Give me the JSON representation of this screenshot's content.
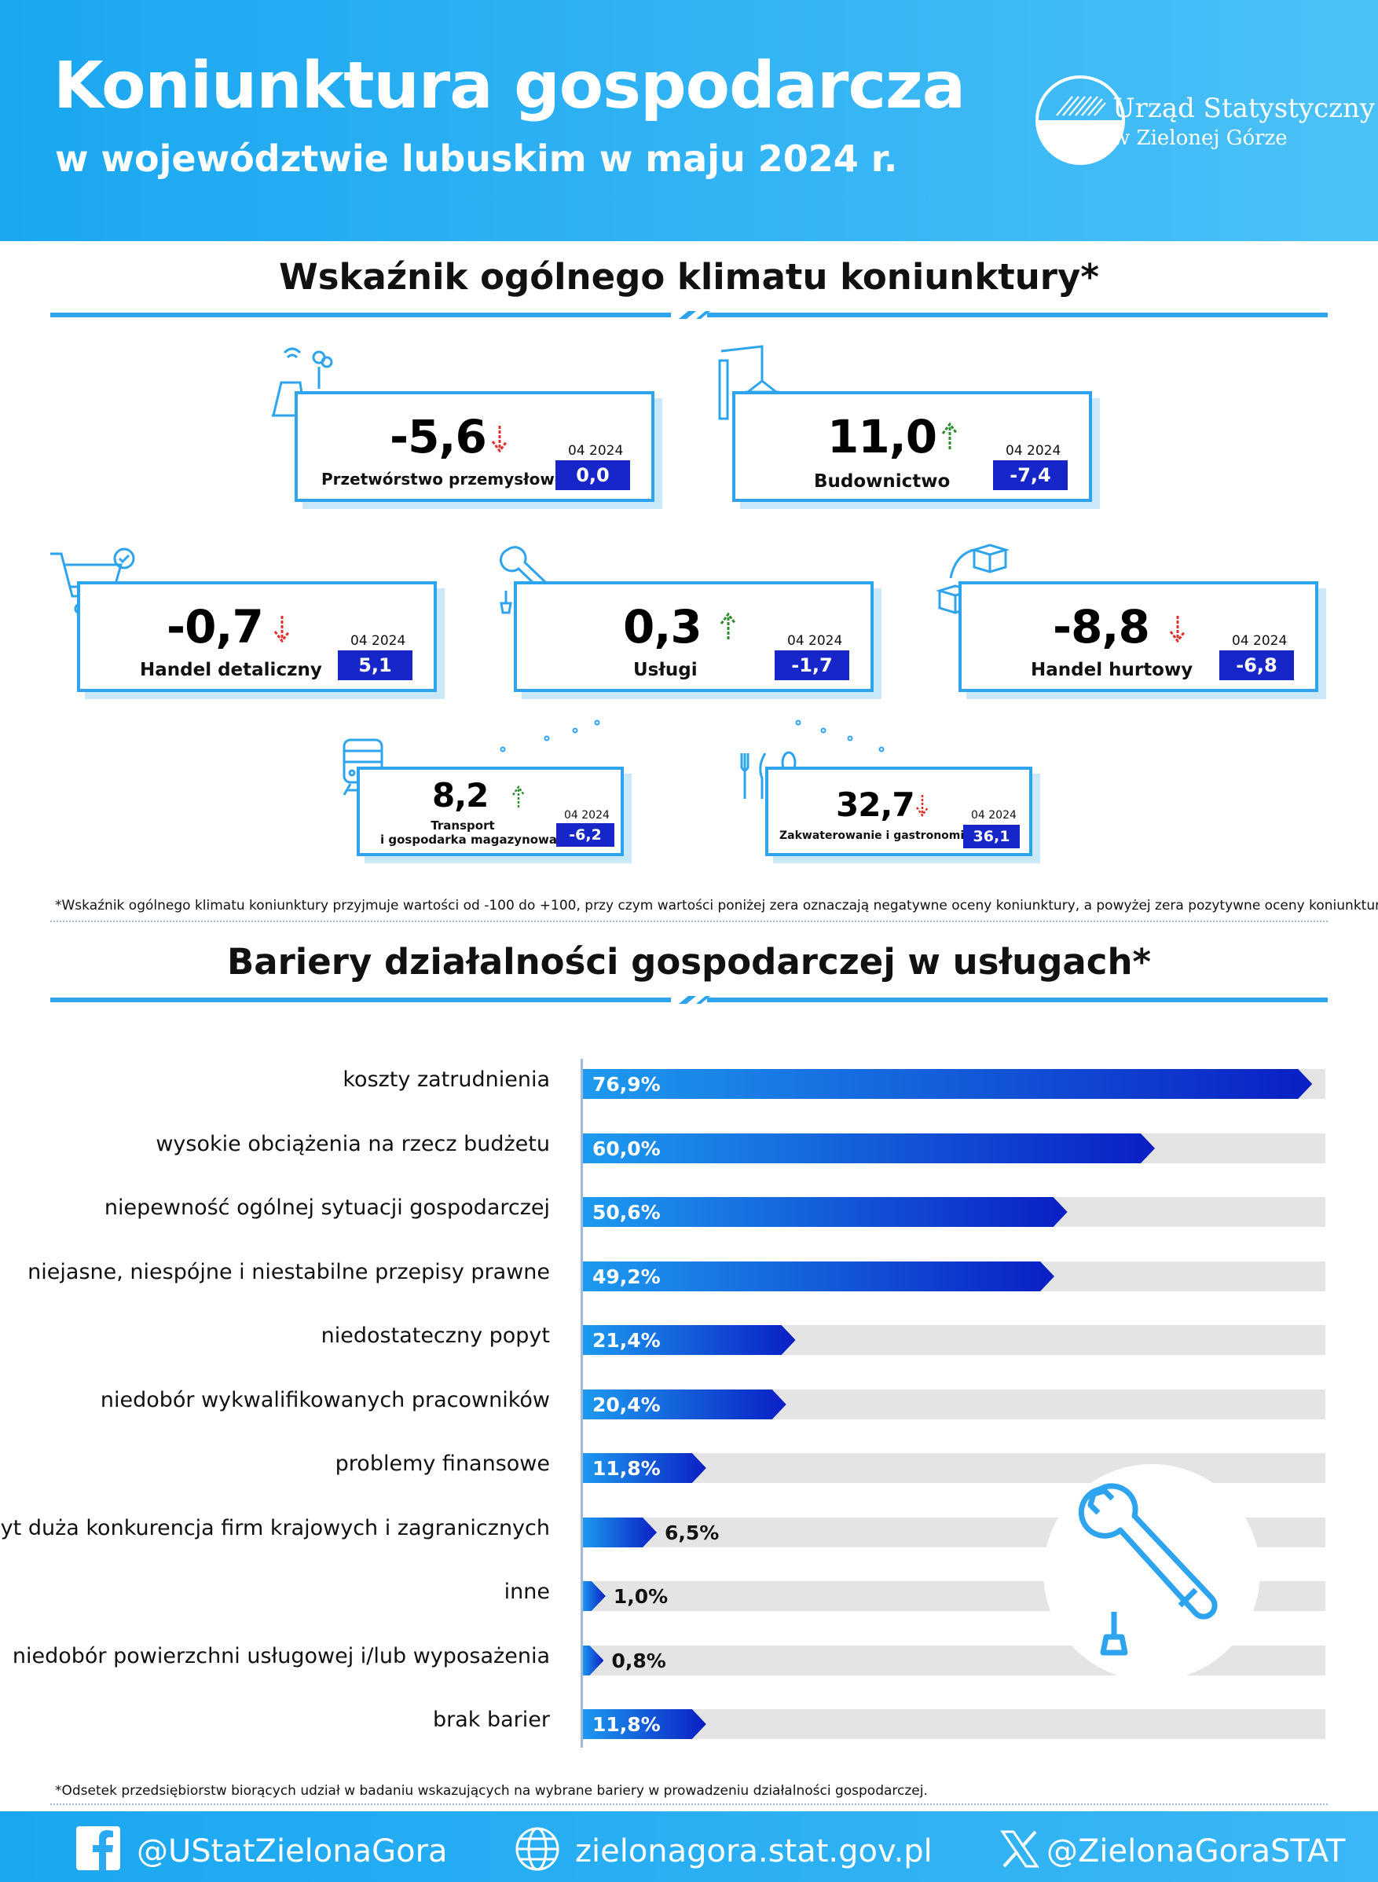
{
  "header": {
    "title": "Koniunktura gospodarcza",
    "subtitle": "w województwie lubuskim w maju 2024 r.",
    "logo_name": "Urząd Statystyczny",
    "logo_sub": "w Zielonej Górze"
  },
  "section1": {
    "title": "Wskaźnik ogólnego klimatu koniunktury*",
    "footnote": "*Wskaźnik ogólnego klimatu koniunktury przyjmuje wartości od -100 do +100, przy czym wartości poniżej zera oznaczają negatywne oceny koniunktury, a powyżej zera pozytywne oceny koniunktury.",
    "indicators": [
      {
        "label": "Przetwórstwo przemysłowe",
        "value": "-5,6",
        "trend": "down",
        "prev_label": "04 2024",
        "prev_value": "0,0",
        "icon": "factory-icon"
      },
      {
        "label": "Budownictwo",
        "value": "11,0",
        "trend": "up",
        "prev_label": "04 2024",
        "prev_value": "-7,4",
        "icon": "crane-icon"
      },
      {
        "label": "Handel detaliczny",
        "value": "-0,7",
        "trend": "down",
        "prev_label": "04 2024",
        "prev_value": "5,1",
        "icon": "shopping-cart-icon"
      },
      {
        "label": "Usługi",
        "value": "0,3",
        "trend": "up",
        "prev_label": "04 2024",
        "prev_value": "-1,7",
        "icon": "wrench-icon"
      },
      {
        "label": "Handel hurtowy",
        "value": "-8,8",
        "trend": "down",
        "prev_label": "04 2024",
        "prev_value": "-6,8",
        "icon": "boxes-icon"
      },
      {
        "label": "Transport\ni gospodarka magazynowa",
        "label_line1": "Transport",
        "label_line2": "i gospodarka magazynowa",
        "value": "8,2",
        "trend": "up",
        "prev_label": "04 2024",
        "prev_value": "-6,2",
        "icon": "train-icon"
      },
      {
        "label": "Zakwaterowanie i gastronomia",
        "value": "32,7",
        "trend": "down",
        "prev_label": "04 2024",
        "prev_value": "36,1",
        "icon": "cutlery-icon"
      }
    ]
  },
  "section2": {
    "title": "Bariery działalności gospodarczej w usługach*",
    "footnote": "*Odsetek przedsiębiorstw biorących udział w badaniu wskazujących na wybrane bariery w prowadzeniu działalności gospodarczej."
  },
  "chart_data": {
    "type": "bar",
    "orientation": "horizontal",
    "title": "Bariery działalności gospodarczej w usługach*",
    "categories": [
      "koszty zatrudnienia",
      "wysokie obciążenia na rzecz budżetu",
      "niepewność ogólnej sytuacji gospodarczej",
      "niejasne, niespójne i niestabilne przepisy prawne",
      "niedostateczny popyt",
      "niedobór wykwalifikowanych pracowników",
      "problemy finansowe",
      "zbyt duża konkurencja firm krajowych i zagranicznych",
      "inne",
      "niedobór powierzchni usługowej i/lub wyposażenia",
      "brak barier"
    ],
    "values": [
      76.9,
      60.0,
      50.6,
      49.2,
      21.4,
      20.4,
      11.8,
      6.5,
      1.0,
      0.8,
      11.8
    ],
    "value_labels": [
      "76,9%",
      "60,0%",
      "50,6%",
      "49,2%",
      "21,4%",
      "20,4%",
      "11,8%",
      "6,5%",
      "1,0%",
      "0,8%",
      "11,8%"
    ],
    "xlim": [
      0,
      80
    ],
    "xlabel": "",
    "ylabel": "",
    "grid": false
  },
  "footer": {
    "facebook": "@UStatZielonaGora",
    "website": "zielonagora.stat.gov.pl",
    "x": "@ZielonaGoraSTAT"
  },
  "colors": {
    "header_blue": "#1aa7f0",
    "card_border": "#2ea4ee",
    "prev_box": "#1726c8",
    "bar_start": "#1d9bf0",
    "bar_end": "#0a1fc4",
    "trend_up": "#2e8b2e",
    "trend_down": "#e0302c"
  }
}
